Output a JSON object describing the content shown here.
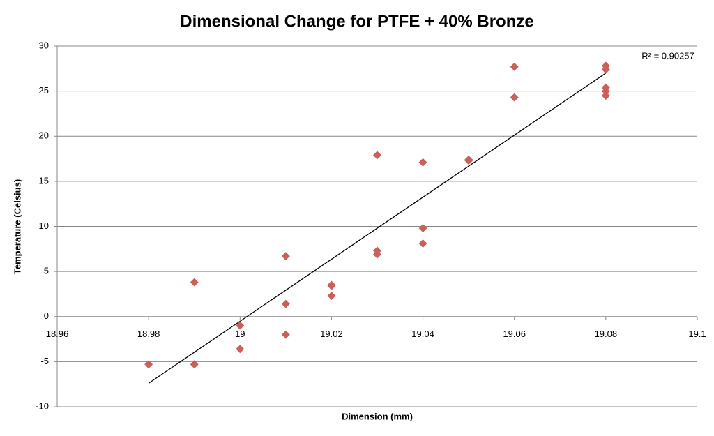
{
  "chart_data": {
    "type": "scatter",
    "title": "Dimensional Change for PTFE + 40% Bronze",
    "x_label": "Dimension (mm)",
    "y_label": "Temperature (Celsius)",
    "annotation": "R² = 0.90257",
    "x": [
      18.98,
      18.99,
      18.99,
      19.0,
      19.0,
      19.01,
      19.01,
      19.01,
      19.02,
      19.02,
      19.02,
      19.03,
      19.03,
      19.03,
      19.04,
      19.04,
      19.04,
      19.05,
      19.05,
      19.06,
      19.06,
      19.08,
      19.08,
      19.08,
      19.08,
      19.08
    ],
    "values": [
      -5.3,
      3.8,
      -5.3,
      -1.0,
      -3.6,
      6.7,
      1.4,
      -2.0,
      3.5,
      3.4,
      2.3,
      17.9,
      7.3,
      6.9,
      17.1,
      9.8,
      8.1,
      17.4,
      17.3,
      27.7,
      24.3,
      27.8,
      27.4,
      25.4,
      25.0,
      24.5
    ],
    "color": "#c9605a",
    "trendline": {
      "x": [
        18.98,
        19.08
      ],
      "y": [
        -7.4,
        27.0
      ],
      "color": "#000000"
    },
    "xlim": [
      18.96,
      19.1
    ],
    "xticks": [
      18.96,
      18.98,
      19,
      19.02,
      19.04,
      19.06,
      19.08,
      19.1
    ],
    "ylim": [
      -10,
      30
    ],
    "yticks": [
      -10,
      -5,
      0,
      5,
      10,
      15,
      20,
      25,
      30
    ],
    "grid": true
  }
}
